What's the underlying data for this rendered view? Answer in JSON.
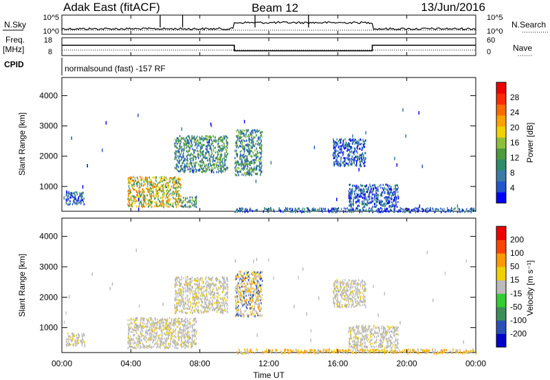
{
  "header": {
    "radar": "Adak East (fitACF)",
    "beam": "Beam 12",
    "date": "13/Jun/2016"
  },
  "sky_panel": {
    "left_label": "N.Sky",
    "right_label": "N.Search",
    "left_ticks": [
      "10^5",
      "10^0"
    ],
    "right_ticks": [
      "10^5",
      "10^0"
    ]
  },
  "freq_panel": {
    "left_label_line1": "Freq.",
    "left_label_line2": "[MHz]",
    "right_label": "Nave",
    "left_ticks": [
      "18",
      "8"
    ],
    "right_ticks": [
      "60",
      "0"
    ],
    "freq_steps": [
      {
        "from_hour": 0,
        "to_hour": 10,
        "level": "high"
      },
      {
        "from_hour": 10,
        "to_hour": 18,
        "level": "low"
      },
      {
        "from_hour": 18,
        "to_hour": 24,
        "level": "high"
      }
    ]
  },
  "cpid_panel": {
    "label": "CPID",
    "text": "normalsound (fast) -157 RF"
  },
  "time_axis": {
    "label": "Time UT",
    "range_hours": [
      0,
      24
    ],
    "ticks": [
      "00:00",
      "04:00",
      "08:00",
      "12:00",
      "16:00",
      "20:00",
      "00:00"
    ]
  },
  "chart_data": [
    {
      "type": "heatmap",
      "quantity": "power",
      "ylabel": "Slant Range [km]",
      "ylim": [
        180,
        4600
      ],
      "yticks": [
        "1000",
        "2000",
        "3000",
        "4000"
      ],
      "colorbar": {
        "label": "Power [dB]",
        "ticks": [
          "4",
          "8",
          "12",
          "16",
          "20",
          "24",
          "28"
        ],
        "range": [
          0,
          30
        ],
        "colors": [
          "#0000ff",
          "#2255cc",
          "#3c7aa8",
          "#2e8c6a",
          "#4e9a3c",
          "#8fbf3a",
          "#f0d200",
          "#ffa200",
          "#ff6a00",
          "#ff2a00",
          "#ee0000"
        ]
      },
      "echo_regions": [
        {
          "t": [
            0.2,
            1.3
          ],
          "range_km": [
            430,
            850
          ],
          "level": "low"
        },
        {
          "t": [
            3.8,
            6.9
          ],
          "range_km": [
            350,
            1350
          ],
          "level": "high"
        },
        {
          "t": [
            6.9,
            7.8
          ],
          "range_km": [
            350,
            700
          ],
          "level": "mid"
        },
        {
          "t": [
            6.5,
            9.6
          ],
          "range_km": [
            1500,
            2700
          ],
          "level": "mid"
        },
        {
          "t": [
            10.0,
            11.6
          ],
          "range_km": [
            1400,
            2900
          ],
          "level": "mid"
        },
        {
          "t": [
            15.7,
            17.6
          ],
          "range_km": [
            1700,
            2600
          ],
          "level": "low"
        },
        {
          "t": [
            16.6,
            19.5
          ],
          "range_km": [
            350,
            1100
          ],
          "level": "low"
        },
        {
          "t": [
            10.0,
            24.0
          ],
          "range_km": [
            180,
            320
          ],
          "level": "low"
        }
      ]
    },
    {
      "type": "heatmap",
      "quantity": "velocity",
      "ylabel": "Slant Range [km]",
      "ylim": [
        180,
        4600
      ],
      "yticks": [
        "1000",
        "2000",
        "3000",
        "4000"
      ],
      "colorbar": {
        "label": "Velocity [m s⁻¹]",
        "ticks": [
          "200",
          "100",
          "50",
          "15",
          "-15",
          "-50",
          "-100",
          "-200"
        ],
        "range": [
          -250,
          250
        ],
        "colors": [
          "#0000cc",
          "#2b4fb8",
          "#3b8e5a",
          "#33cc33",
          "#bbbbbb",
          "#f0d000",
          "#ff9900",
          "#ff4400",
          "#ee0000"
        ]
      },
      "echo_regions": [
        {
          "t": [
            0.2,
            1.3
          ],
          "range_km": [
            430,
            850
          ],
          "level": "gray"
        },
        {
          "t": [
            3.8,
            7.8
          ],
          "range_km": [
            350,
            1350
          ],
          "level": "gray"
        },
        {
          "t": [
            6.5,
            9.6
          ],
          "range_km": [
            1500,
            2700
          ],
          "level": "gray"
        },
        {
          "t": [
            10.0,
            11.6
          ],
          "range_km": [
            1400,
            2900
          ],
          "level": "mixed"
        },
        {
          "t": [
            15.7,
            17.6
          ],
          "range_km": [
            1700,
            2600
          ],
          "level": "gray"
        },
        {
          "t": [
            16.6,
            19.5
          ],
          "range_km": [
            350,
            1100
          ],
          "level": "gray"
        },
        {
          "t": [
            10.0,
            24.0
          ],
          "range_km": [
            180,
            320
          ],
          "level": "yellow"
        }
      ]
    }
  ]
}
